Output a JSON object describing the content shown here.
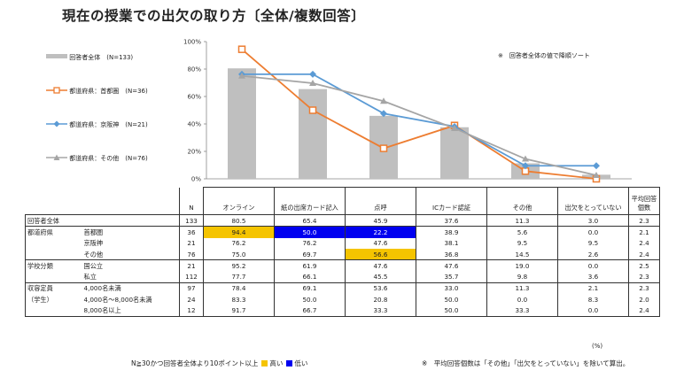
{
  "title": "現在の授業での出欠の取り方〔全体/複数回答〕",
  "note_top": "※　回答者全体の値で降順ソート",
  "colors": {
    "bar": "#bfbfbf",
    "shutoken": "#ed7d31",
    "keihanshin": "#5b9bd5",
    "other": "#a5a5a5",
    "high": "#f5c400",
    "low": "#0000f0"
  },
  "chart_data": {
    "type": "bar",
    "categories": [
      "オンライン",
      "紙の出席カード記入",
      "点呼",
      "ICカード認証",
      "その他",
      "出欠をとっていない"
    ],
    "ylim": [
      0,
      100
    ],
    "yticks": [
      "0%",
      "20%",
      "40%",
      "60%",
      "80%",
      "100%"
    ],
    "series": [
      {
        "name": "回答者全体　(N=133)",
        "kind": "bar",
        "values": [
          80.5,
          65.4,
          45.9,
          37.6,
          11.3,
          3.0
        ]
      },
      {
        "name": "都道府県：首都圏　(N=36)",
        "kind": "line",
        "marker": "square",
        "values": [
          94.4,
          50.0,
          22.2,
          38.9,
          5.6,
          0.0
        ]
      },
      {
        "name": "都道府県：京阪神　(N=21)",
        "kind": "line",
        "marker": "diamond",
        "values": [
          76.2,
          76.2,
          47.6,
          38.1,
          9.5,
          9.5
        ]
      },
      {
        "name": "都道府県：その他　(N=76)",
        "kind": "line",
        "marker": "triangle",
        "values": [
          75.0,
          69.7,
          56.6,
          36.8,
          14.5,
          2.6
        ]
      }
    ]
  },
  "table": {
    "headers": {
      "n": "N",
      "cols": [
        "オンライン",
        "紙の出席カード記入",
        "点呼",
        "ICカード認証",
        "その他",
        "出欠をとっていない"
      ],
      "avg": "平均回答個数"
    },
    "rows": [
      {
        "group": "回答者全体",
        "sub": "",
        "n": "133",
        "v": [
          "80.5",
          "65.4",
          "45.9",
          "37.6",
          "11.3",
          "3.0"
        ],
        "avg": "2.3",
        "hl": [
          "",
          "",
          "",
          "",
          "",
          ""
        ],
        "gtop": true,
        "full": true
      },
      {
        "group": "都道府県",
        "sub": "首都圏",
        "n": "36",
        "v": [
          "94.4",
          "50.0",
          "22.2",
          "38.9",
          "5.6",
          "0.0"
        ],
        "avg": "2.1",
        "hl": [
          "hi",
          "lo",
          "lo",
          "",
          "",
          ""
        ],
        "gtop": true
      },
      {
        "group": "",
        "sub": "京阪神",
        "n": "21",
        "v": [
          "76.2",
          "76.2",
          "47.6",
          "38.1",
          "9.5",
          "9.5"
        ],
        "avg": "2.4",
        "hl": [
          "",
          "",
          "",
          "",
          "",
          ""
        ]
      },
      {
        "group": "",
        "sub": "その他",
        "n": "76",
        "v": [
          "75.0",
          "69.7",
          "56.6",
          "36.8",
          "14.5",
          "2.6"
        ],
        "avg": "2.4",
        "hl": [
          "",
          "",
          "hi",
          "",
          "",
          ""
        ]
      },
      {
        "group": "学校分類",
        "sub": "国公立",
        "n": "21",
        "v": [
          "95.2",
          "61.9",
          "47.6",
          "47.6",
          "19.0",
          "0.0"
        ],
        "avg": "2.5",
        "hl": [
          "",
          "",
          "",
          "",
          "",
          ""
        ],
        "gtop": true
      },
      {
        "group": "",
        "sub": "私立",
        "n": "112",
        "v": [
          "77.7",
          "66.1",
          "45.5",
          "35.7",
          "9.8",
          "3.6"
        ],
        "avg": "2.3",
        "hl": [
          "",
          "",
          "",
          "",
          "",
          ""
        ]
      },
      {
        "group": "収容定員",
        "sub": "4,000名未満",
        "n": "97",
        "v": [
          "78.4",
          "69.1",
          "53.6",
          "33.0",
          "11.3",
          "2.1"
        ],
        "avg": "2.3",
        "hl": [
          "",
          "",
          "",
          "",
          "",
          ""
        ],
        "gtop": true
      },
      {
        "group": "（学生）",
        "sub": "4,000名～8,000名未満",
        "n": "24",
        "v": [
          "83.3",
          "50.0",
          "20.8",
          "50.0",
          "0.0",
          "8.3"
        ],
        "avg": "2.0",
        "hl": [
          "",
          "",
          "",
          "",
          "",
          ""
        ]
      },
      {
        "group": "",
        "sub": "8,000名以上",
        "n": "12",
        "v": [
          "91.7",
          "66.7",
          "33.3",
          "50.0",
          "33.3",
          "0.0"
        ],
        "avg": "2.4",
        "hl": [
          "",
          "",
          "",
          "",
          "",
          ""
        ],
        "last": true
      }
    ]
  },
  "pct_unit": "(%)",
  "footer_left": {
    "text": "N≧30かつ回答者全体より10ポイント以上",
    "high": "高い",
    "low": "低い"
  },
  "footer_right": "※　平均回答個数は「その他」「出欠をとっていない」を除いて算出。"
}
